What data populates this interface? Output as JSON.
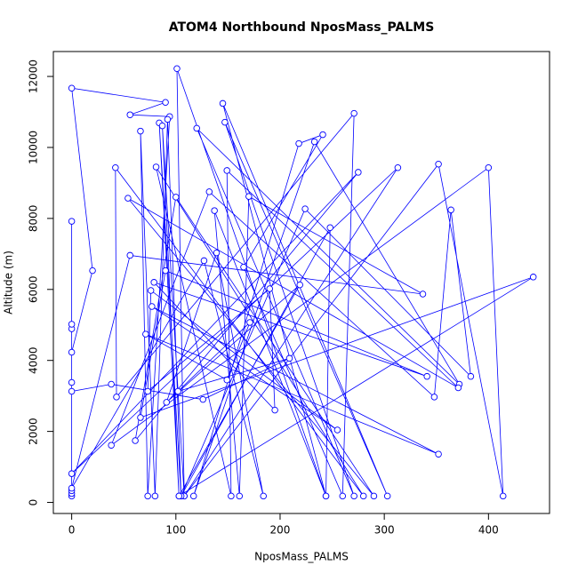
{
  "chart_data": {
    "type": "line-points",
    "title": "ATOM4 Northbound NposMass_PALMS",
    "x_label": "NposMass_PALMS",
    "y_label": "Altitude (m)",
    "color": "#0000ff",
    "x": [
      0,
      0,
      0,
      0,
      0,
      20,
      0,
      90,
      56,
      94,
      73,
      66,
      80,
      92,
      105,
      84,
      103,
      87,
      108,
      101,
      244,
      145,
      303,
      147,
      271,
      120,
      372,
      233,
      117,
      218,
      241,
      165,
      260,
      271,
      43,
      42,
      280,
      81,
      153,
      149,
      371,
      54,
      290,
      100,
      61,
      275,
      0,
      313,
      108,
      352,
      414,
      400,
      38,
      132,
      348,
      364,
      383,
      224,
      105,
      248,
      244,
      137,
      161,
      170,
      337,
      56,
      0,
      127,
      184,
      139,
      91,
      219,
      103,
      443,
      66,
      90,
      341,
      79,
      195,
      190,
      73,
      76,
      255,
      77,
      352,
      71,
      149,
      171,
      102,
      209,
      126,
      38,
      0,
      0,
      0,
      0
    ],
    "y": [
      180,
      250,
      7920,
      330,
      4230,
      6530,
      11670,
      11270,
      10920,
      10870,
      180,
      10460,
      180,
      10790,
      180,
      10690,
      180,
      10610,
      180,
      12220,
      180,
      11240,
      180,
      10710,
      180,
      10540,
      3330,
      10160,
      180,
      10110,
      10360,
      6630,
      180,
      10960,
      2970,
      9430,
      180,
      9450,
      180,
      9350,
      3230,
      8570,
      180,
      8600,
      1740,
      9300,
      810,
      9430,
      180,
      9530,
      180,
      9430,
      1610,
      8750,
      2970,
      8240,
      3550,
      8270,
      180,
      7740,
      180,
      8220,
      180,
      8620,
      5870,
      6960,
      400,
      6810,
      180,
      7030,
      2820,
      6130,
      180,
      6350,
      2390,
      6530,
      3550,
      6200,
      2600,
      6020,
      3130,
      5970,
      2040,
      5520,
      1360,
      4740,
      3450,
      5070,
      3130,
      4060,
      2900,
      3330,
      3130,
      3380,
      4890,
      5020
    ],
    "xlim": [
      -17.6,
      458.6
    ],
    "ylim": [
      -312,
      12702
    ],
    "xticks": [
      0,
      100,
      200,
      300,
      400
    ],
    "yticks": [
      0,
      2000,
      4000,
      6000,
      8000,
      10000,
      12000
    ]
  }
}
